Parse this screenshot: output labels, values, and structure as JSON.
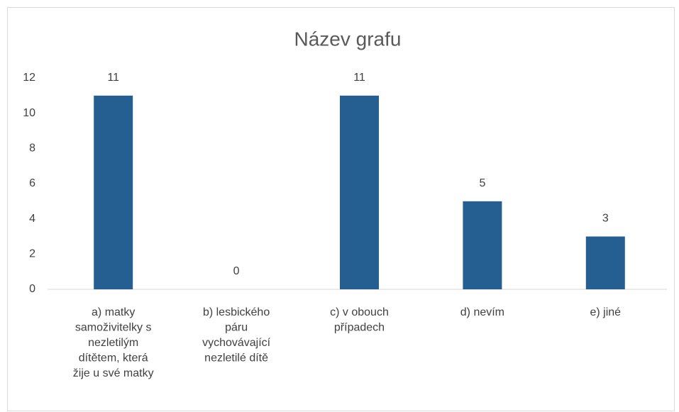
{
  "chart_data": {
    "type": "bar",
    "title": "Název grafu",
    "categories": [
      "a) matky samoživitelky s nezletilým dítětem, která žije u své matky",
      "b) lesbického páru vychovávající nezletilé dítě",
      "c) v obouch případech",
      "d) nevím",
      "e) jiné"
    ],
    "values": [
      11,
      0,
      11,
      5,
      3
    ],
    "color": "#255e91",
    "ylim": [
      0,
      12
    ],
    "yticks": [
      0,
      2,
      4,
      6,
      8,
      10,
      12
    ],
    "grid": false,
    "data_labels": true
  }
}
